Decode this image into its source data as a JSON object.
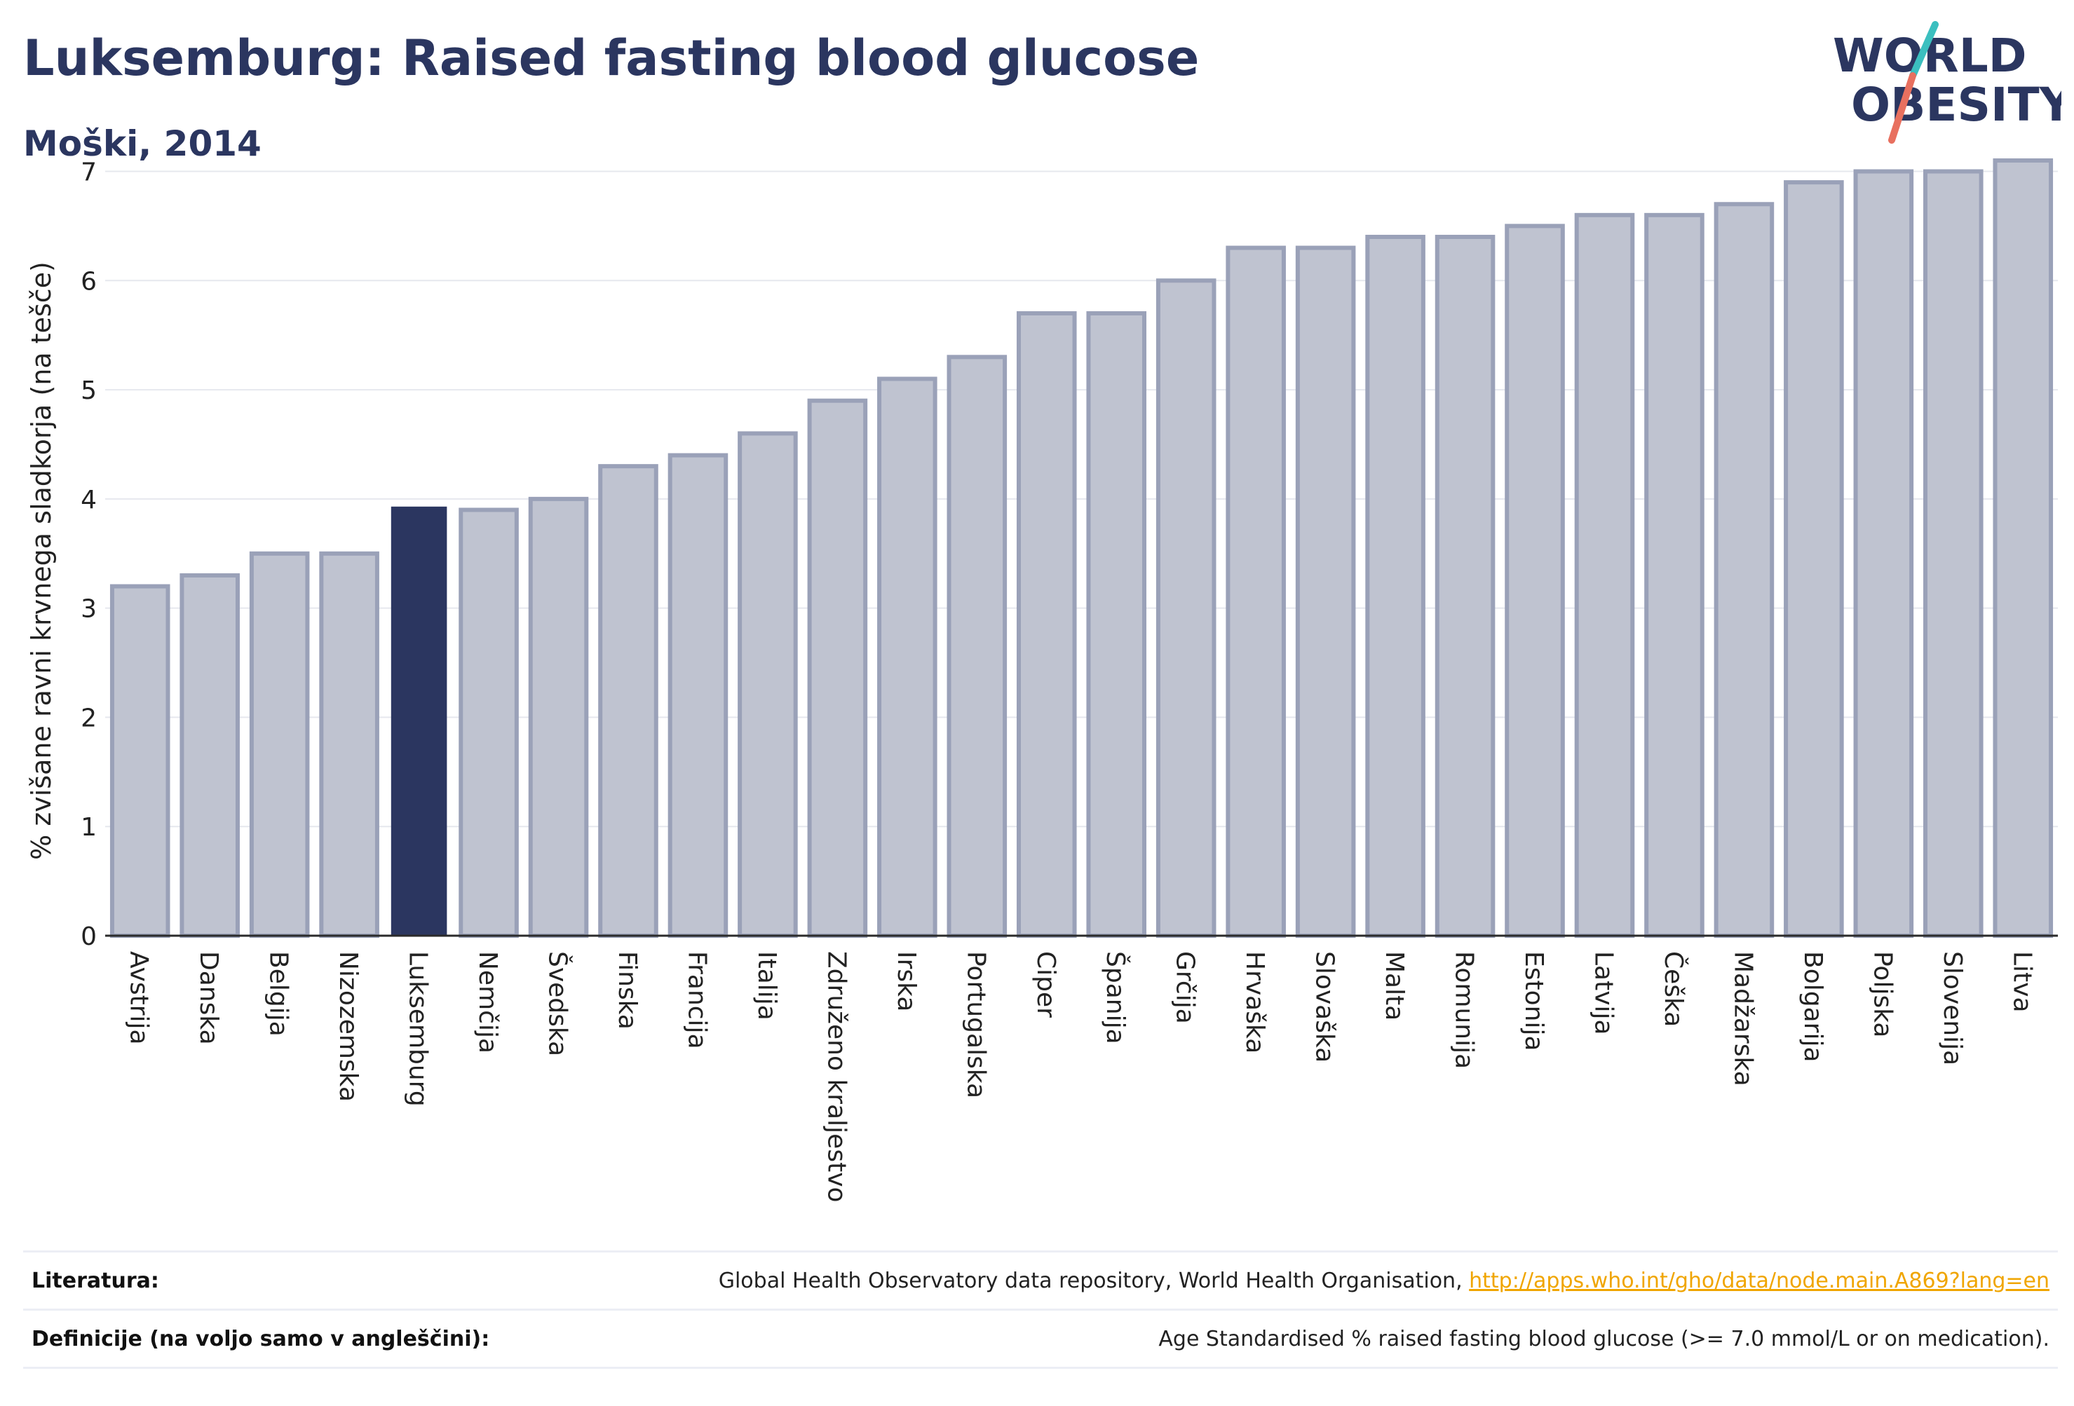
{
  "header": {
    "title": "Luksemburg: Raised fasting blood glucose",
    "subtitle": "Moški, 2014"
  },
  "logo": {
    "line1": "WORLD",
    "line2": "OBESITY"
  },
  "chart_data": {
    "type": "bar",
    "ylabel": "% zvišane ravni krvnega sladkorja (na tešče)",
    "xlabel": "",
    "ylim": [
      0,
      7.35
    ],
    "yticks": [
      0,
      1,
      2,
      3,
      4,
      5,
      6,
      7
    ],
    "grid": true,
    "highlight": "Luksemburg",
    "colors": {
      "bar": "#bfc3d0",
      "bar_edge": "#9aa1b8",
      "highlight": "#2b3660"
    },
    "categories": [
      "Avstrija",
      "Danska",
      "Belgija",
      "Nizozemska",
      "Luksemburg",
      "Nemčija",
      "Švedska",
      "Finska",
      "Francija",
      "Italija",
      "Združeno kraljestvo",
      "Irska",
      "Portugalska",
      "Ciper",
      "Španija",
      "Grčija",
      "Hrvaška",
      "Slovaška",
      "Malta",
      "Romunija",
      "Estonija",
      "Latvija",
      "Češka",
      "Madžarska",
      "Bolgarija",
      "Poljska",
      "Slovenija",
      "Litva"
    ],
    "values": [
      3.2,
      3.3,
      3.5,
      3.5,
      3.93,
      3.9,
      4.0,
      4.3,
      4.4,
      4.6,
      4.9,
      5.1,
      5.3,
      5.7,
      5.7,
      6.0,
      6.3,
      6.3,
      6.4,
      6.4,
      6.5,
      6.6,
      6.6,
      6.7,
      6.9,
      7.0,
      7.0,
      7.1
    ]
  },
  "footer": {
    "references_label": "Literatura:",
    "references_text": "Global Health Observatory data repository, World Health Organisation, ",
    "references_link": "http://apps.who.int/gho/data/node.main.A869?lang=en",
    "definitions_label": "Definicije (na voljo samo v angleščini):",
    "definitions_text": "Age Standardised % raised fasting blood glucose (>= 7.0 mmol/L or on medication)."
  }
}
